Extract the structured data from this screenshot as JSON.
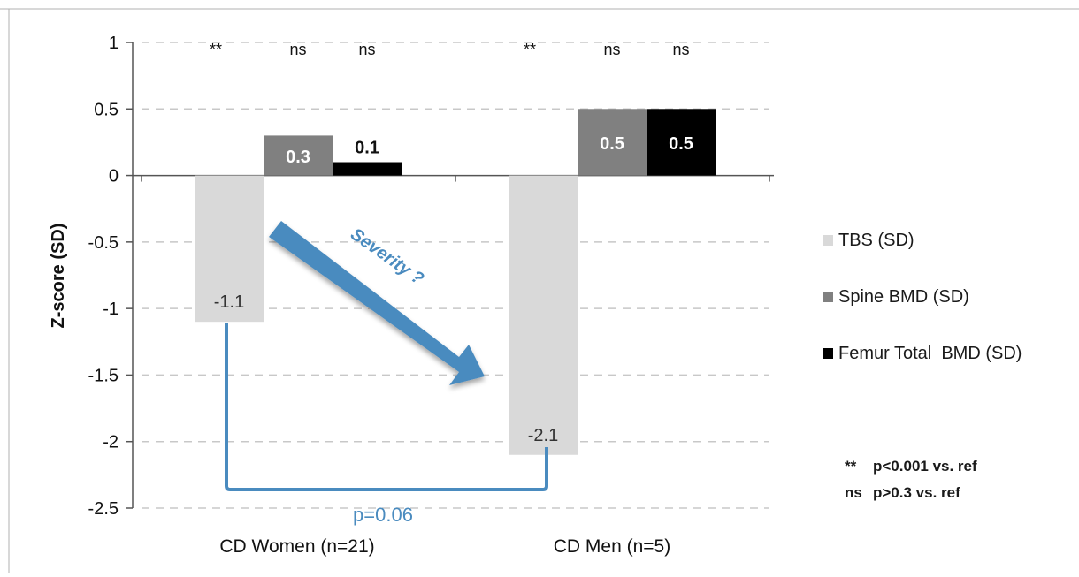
{
  "chart_data": {
    "type": "bar",
    "categories": [
      "CD Women (n=21)",
      "CD Men (n=5)"
    ],
    "series": [
      {
        "name": "TBS (SD)",
        "values": [
          -1.1,
          -2.1
        ],
        "labels": [
          "-1.1",
          "-2.1"
        ],
        "color": "#d9d9d9",
        "label_color": "#333333",
        "label_weight": "normal",
        "sig": [
          "**",
          "**"
        ]
      },
      {
        "name": "Spine BMD (SD)",
        "values": [
          0.3,
          0.5
        ],
        "labels": [
          "0.3",
          "0.5"
        ],
        "color": "#808080",
        "label_color": "#ffffff",
        "label_weight": "bold",
        "sig": [
          "ns",
          "ns"
        ]
      },
      {
        "name": "Femur Total  BMD (SD)",
        "values": [
          0.1,
          0.5
        ],
        "labels": [
          "0.1",
          "0.5"
        ],
        "color": "#000000",
        "label_color": "#ffffff",
        "label_weight": "bold",
        "sig": [
          "ns",
          "ns"
        ]
      }
    ],
    "ylabel": "Z-score (SD)",
    "ylim": [
      -2.5,
      1
    ],
    "yticks": [
      "1",
      "0.5",
      "0",
      "-0.5",
      "-1",
      "-1.5",
      "-2",
      "-2.5"
    ],
    "grid": true,
    "legend_position": "right",
    "annotations": {
      "arrow_label": "Severity ?",
      "bracket_label": "p=0.06",
      "accent_color": "#4a8bbf"
    }
  },
  "footnotes": [
    {
      "mark": "**",
      "text": "p<0.001 vs. ref"
    },
    {
      "mark": "ns",
      "text": "p>0.3 vs. ref"
    }
  ]
}
